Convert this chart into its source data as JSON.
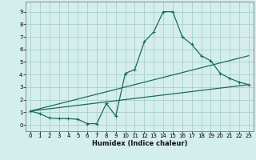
{
  "xlabel": "Humidex (Indice chaleur)",
  "xlim": [
    -0.5,
    23.5
  ],
  "ylim": [
    -0.5,
    9.8
  ],
  "xticks": [
    0,
    1,
    2,
    3,
    4,
    5,
    6,
    7,
    8,
    9,
    10,
    11,
    12,
    13,
    14,
    15,
    16,
    17,
    18,
    19,
    20,
    21,
    22,
    23
  ],
  "yticks": [
    0,
    1,
    2,
    3,
    4,
    5,
    6,
    7,
    8,
    9
  ],
  "bg_color": "#d4eeec",
  "grid_color": "#aacfcc",
  "line_color": "#1a6b60",
  "line1_x": [
    0,
    1,
    2,
    3,
    4,
    5,
    6,
    7,
    8,
    9,
    10,
    11,
    12,
    13,
    14,
    15,
    16,
    17,
    18,
    19,
    20,
    21,
    22,
    23
  ],
  "line1_y": [
    1.1,
    0.9,
    0.55,
    0.5,
    0.5,
    0.45,
    0.1,
    0.1,
    1.7,
    0.7,
    4.1,
    4.4,
    6.6,
    7.4,
    9.0,
    9.0,
    7.0,
    6.4,
    5.5,
    5.1,
    4.1,
    3.7,
    3.4,
    3.2
  ],
  "line2_x": [
    0,
    23
  ],
  "line2_y": [
    1.1,
    5.5
  ],
  "line3_x": [
    0,
    23
  ],
  "line3_y": [
    1.1,
    3.2
  ],
  "tick_fontsize": 5.0,
  "xlabel_fontsize": 6.0,
  "lw": 0.9
}
